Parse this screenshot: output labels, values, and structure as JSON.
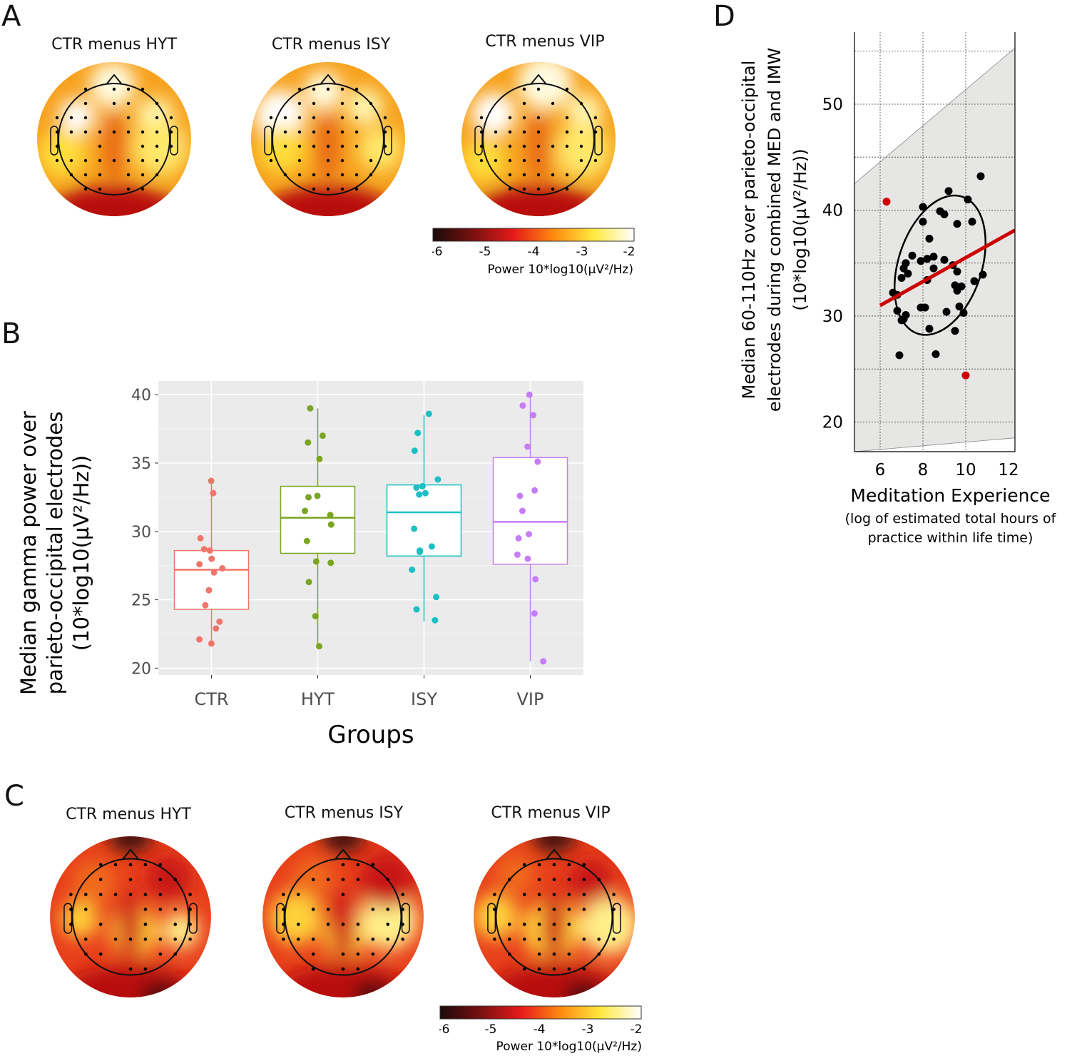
{
  "panels": {
    "A": {
      "letter": "A",
      "titles": [
        "CTR menus HYT",
        "CTR menus ISY",
        "CTR menus VIP"
      ],
      "colorbar": {
        "ticks": [
          "-6",
          "-5",
          "-4",
          "-3",
          "-2"
        ],
        "label": "Power 10*log10(µV²/Hz)"
      }
    },
    "B": {
      "letter": "B"
    },
    "C": {
      "letter": "C",
      "titles": [
        "CTR menus HYT",
        "CTR menus ISY",
        "CTR menus VIP"
      ],
      "colorbar": {
        "ticks": [
          "-6",
          "-5",
          "-4",
          "-3",
          "-2"
        ],
        "label": "Power 10*log10(µV²/Hz)"
      }
    },
    "D": {
      "letter": "D"
    }
  },
  "chart_data": [
    {
      "type": "box",
      "xlabel": "Groups",
      "ylabel_lines": [
        "Median gamma power over",
        "parieto-occipital electrodes",
        "(10*log10(µV²/Hz))"
      ],
      "ylim": [
        19.5,
        41
      ],
      "yticks": [
        20,
        25,
        30,
        35,
        40
      ],
      "categories": [
        "CTR",
        "HYT",
        "ISY",
        "VIP"
      ],
      "colors": {
        "CTR": "#f0766c",
        "HYT": "#7aa423",
        "ISY": "#1cbfc4",
        "VIP": "#c67df5"
      },
      "boxes": [
        {
          "group": "CTR",
          "min": 21.8,
          "q1": 24.3,
          "median": 27.2,
          "q3": 28.6,
          "max": 33.6
        },
        {
          "group": "HYT",
          "min": 21.6,
          "q1": 28.4,
          "median": 31.0,
          "q3": 33.3,
          "max": 39.0
        },
        {
          "group": "ISY",
          "min": 23.4,
          "q1": 28.2,
          "median": 31.4,
          "q3": 33.4,
          "max": 38.5
        },
        {
          "group": "VIP",
          "min": 20.5,
          "q1": 27.6,
          "median": 30.7,
          "q3": 35.4,
          "max": 40.0
        }
      ],
      "points": {
        "CTR": [
          33.7,
          32.8,
          29.5,
          28.7,
          28.6,
          28.0,
          27.6,
          27.3,
          27.0,
          25.7,
          24.6,
          23.4,
          22.9,
          22.1,
          21.8
        ],
        "HYT": [
          39.0,
          37.0,
          36.5,
          35.3,
          32.6,
          32.5,
          31.5,
          31.2,
          30.5,
          29.3,
          27.8,
          27.7,
          26.3,
          23.8,
          21.6
        ],
        "ISY": [
          38.6,
          37.2,
          35.9,
          33.8,
          33.3,
          33.2,
          32.8,
          32.7,
          30.2,
          28.9,
          28.6,
          28.5,
          27.2,
          25.2,
          24.3,
          23.5
        ],
        "VIP": [
          40.0,
          39.2,
          38.5,
          36.2,
          35.1,
          33.0,
          32.6,
          31.5,
          29.8,
          29.5,
          28.3,
          28.0,
          26.5,
          24.0,
          20.5
        ]
      }
    },
    {
      "type": "scatter",
      "xlabel": "Meditation Experience",
      "xlabel_sub_lines": [
        "(log of estimated total hours of",
        "practice within life time)"
      ],
      "ylabel_lines": [
        "Median 60-110Hz over parieto-occipital",
        "electrodes during combined MED and IMW",
        "(10*log10(µV²/Hz))"
      ],
      "xlim": [
        4.8,
        12.3
      ],
      "ylim": [
        17.2,
        56.8
      ],
      "xticks": [
        6,
        8,
        10,
        12
      ],
      "yticks": [
        20,
        30,
        40,
        50
      ],
      "grid": true,
      "points": [
        {
          "x": 10.7,
          "y": 43.2
        },
        {
          "x": 10.1,
          "y": 41.0
        },
        {
          "x": 9.2,
          "y": 41.8
        },
        {
          "x": 8.0,
          "y": 40.3
        },
        {
          "x": 8.8,
          "y": 39.9
        },
        {
          "x": 9.0,
          "y": 39.6
        },
        {
          "x": 10.3,
          "y": 38.9
        },
        {
          "x": 8.0,
          "y": 38.9
        },
        {
          "x": 9.6,
          "y": 38.7
        },
        {
          "x": 8.3,
          "y": 37.3
        },
        {
          "x": 7.5,
          "y": 35.7
        },
        {
          "x": 8.5,
          "y": 35.6
        },
        {
          "x": 7.9,
          "y": 35.2
        },
        {
          "x": 8.2,
          "y": 35.4
        },
        {
          "x": 9.0,
          "y": 35.3
        },
        {
          "x": 7.2,
          "y": 35.0
        },
        {
          "x": 9.4,
          "y": 34.8
        },
        {
          "x": 7.1,
          "y": 34.5
        },
        {
          "x": 8.5,
          "y": 34.5
        },
        {
          "x": 7.3,
          "y": 34.0
        },
        {
          "x": 9.6,
          "y": 34.2
        },
        {
          "x": 7.0,
          "y": 33.6
        },
        {
          "x": 8.2,
          "y": 33.4
        },
        {
          "x": 10.8,
          "y": 33.9
        },
        {
          "x": 10.4,
          "y": 33.3
        },
        {
          "x": 9.5,
          "y": 32.9
        },
        {
          "x": 9.8,
          "y": 32.8
        },
        {
          "x": 9.6,
          "y": 32.4
        },
        {
          "x": 6.6,
          "y": 32.2
        },
        {
          "x": 6.8,
          "y": 32.0
        },
        {
          "x": 9.7,
          "y": 30.9
        },
        {
          "x": 7.9,
          "y": 30.8
        },
        {
          "x": 8.1,
          "y": 30.8
        },
        {
          "x": 6.8,
          "y": 30.5
        },
        {
          "x": 9.1,
          "y": 30.4
        },
        {
          "x": 9.9,
          "y": 30.3
        },
        {
          "x": 7.2,
          "y": 30.1
        },
        {
          "x": 7.1,
          "y": 29.7
        },
        {
          "x": 7.0,
          "y": 29.6
        },
        {
          "x": 8.3,
          "y": 28.8
        },
        {
          "x": 9.5,
          "y": 28.6
        },
        {
          "x": 6.9,
          "y": 26.3
        },
        {
          "x": 8.6,
          "y": 26.4
        }
      ],
      "outliers": [
        {
          "x": 6.3,
          "y": 40.8
        },
        {
          "x": 10.0,
          "y": 24.4
        }
      ],
      "fit_line": {
        "x": [
          6.0,
          12.3
        ],
        "y": [
          31.0,
          38.1
        ]
      },
      "fit_color": "#cc0000",
      "ellipse": {
        "cx": 8.8,
        "cy": 34.8,
        "rx": 1.95,
        "ry": 10.3,
        "angle_deg": 18
      },
      "band_upper": {
        "x": [
          4.8,
          12.3
        ],
        "y": [
          42.5,
          55.3
        ]
      },
      "band_lower": {
        "x": [
          4.8,
          12.3
        ],
        "y": [
          17.2,
          18.5
        ]
      }
    }
  ]
}
